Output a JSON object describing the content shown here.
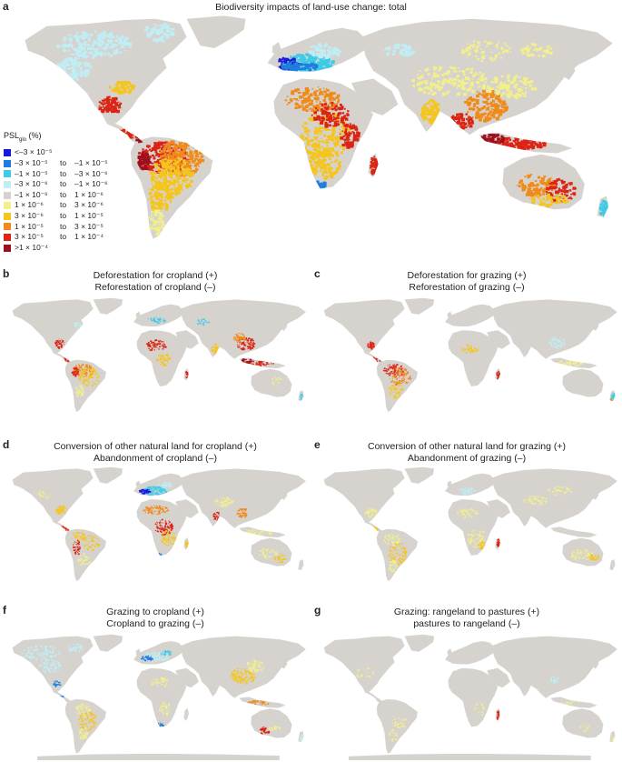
{
  "panels": [
    {
      "letter": "a",
      "title_lines": [
        "Biodiversity impacts of land-use change: total"
      ]
    },
    {
      "letter": "b",
      "title_lines": [
        "Deforestation for cropland (+)",
        "Reforestation of cropland  (–)"
      ]
    },
    {
      "letter": "c",
      "title_lines": [
        "Deforestation for grazing  (+)",
        "Reforestation of grazing (–)"
      ]
    },
    {
      "letter": "d",
      "title_lines": [
        "Conversion of other natural land for cropland (+)",
        "Abandonment of cropland  (–)"
      ]
    },
    {
      "letter": "e",
      "title_lines": [
        "Conversion of other natural land for grazing (+)",
        "Abandonment of grazing (–)"
      ]
    },
    {
      "letter": "f",
      "title_lines": [
        "Grazing  to cropland (+)",
        "Cropland to grazing (–)"
      ]
    },
    {
      "letter": "g",
      "title_lines": [
        "Grazing: rangeland to pastures (+)",
        "pastures to rangeland (–)"
      ]
    }
  ],
  "legend": {
    "title": "PSL",
    "title_sub": "glo",
    "title_suffix": " (%)",
    "items": [
      {
        "a": "<–3 × 10⁻⁵",
        "to": "",
        "b": "",
        "color": "#1a1adb"
      },
      {
        "a": "–3 × 10⁻⁵",
        "to": "to",
        "b": "–1 × 10⁻⁵",
        "color": "#1f7fe0"
      },
      {
        "a": "–1 × 10⁻⁵",
        "to": "to",
        "b": "–3 × 10⁻⁶",
        "color": "#3ecbe8"
      },
      {
        "a": "–3 × 10⁻⁶",
        "to": "to",
        "b": "–1 × 10⁻⁶",
        "color": "#bfeef5"
      },
      {
        "a": "–1 × 10⁻⁶",
        "to": "to",
        "b": "1 × 10⁻⁶",
        "color": "#d6d3cf"
      },
      {
        "a": "1 × 10⁻⁶",
        "to": "to",
        "b": "3 × 10⁻⁶",
        "color": "#f3f08a"
      },
      {
        "a": "3 × 10⁻⁶",
        "to": "to",
        "b": "1 × 10⁻⁵",
        "color": "#f5c51d"
      },
      {
        "a": "1 × 10⁻⁵",
        "to": "to",
        "b": "3 × 10⁻⁵",
        "color": "#f08a18"
      },
      {
        "a": "3 × 10⁻⁵",
        "to": "to",
        "b": "1 × 10⁻⁴",
        "color": "#dc2415"
      },
      {
        "a": ">1 × 10⁻⁴",
        "to": "",
        "b": "",
        "color": "#9e0f1e"
      }
    ]
  },
  "colors": {
    "land": "#d6d3cf",
    "ocean": "#ffffff"
  }
}
